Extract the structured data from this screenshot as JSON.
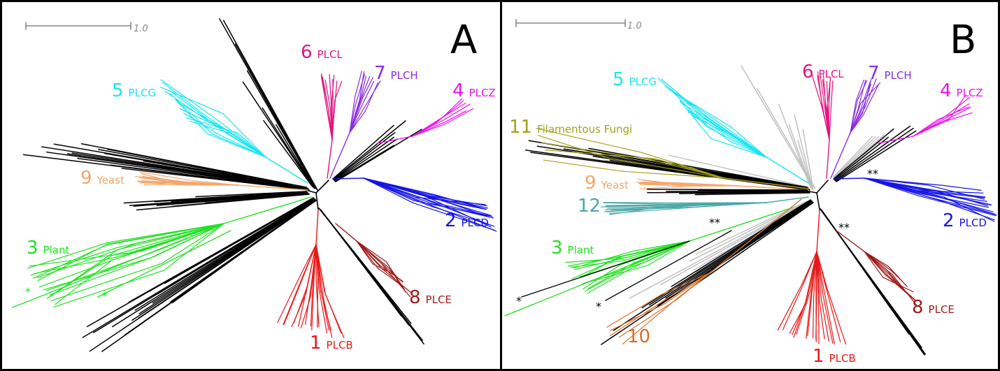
{
  "panels": [
    {
      "letter": "A",
      "scale_label": "1.0",
      "clusters": [
        {
          "num": "6",
          "name": "PLCL",
          "color": "#e0157f"
        },
        {
          "num": "7",
          "name": "PLCH",
          "color": "#8b2be2"
        },
        {
          "num": "4",
          "name": "PLCZ",
          "color": "#ee10ee"
        },
        {
          "num": "5",
          "name": "PLCG",
          "color": "#17e6f2"
        },
        {
          "num": "9",
          "name": "Yeast",
          "color": "#f5a66a"
        },
        {
          "num": "2",
          "name": "PLCD",
          "color": "#1414e6"
        },
        {
          "num": "3",
          "name": "Plant",
          "color": "#22e022"
        },
        {
          "num": "8",
          "name": "PLCE",
          "color": "#9e1a1a"
        },
        {
          "num": "1",
          "name": "PLCB",
          "color": "#e81818"
        }
      ],
      "markers": [
        "*",
        "*"
      ]
    },
    {
      "letter": "B",
      "scale_label": "1.0",
      "clusters": [
        {
          "num": "6",
          "name": "PLCL",
          "color": "#e0157f"
        },
        {
          "num": "7",
          "name": "PLCH",
          "color": "#8b2be2"
        },
        {
          "num": "4",
          "name": "PLCZ",
          "color": "#ee10ee"
        },
        {
          "num": "5",
          "name": "PLCG",
          "color": "#17e6f2"
        },
        {
          "num": "11",
          "name": "Filamentous Fungi",
          "color": "#a3a21a"
        },
        {
          "num": "9",
          "name": "Yeast",
          "color": "#f5a66a"
        },
        {
          "num": "12",
          "name": "",
          "color": "#4aa8a8"
        },
        {
          "num": "2",
          "name": "PLCD",
          "color": "#1414e6"
        },
        {
          "num": "3",
          "name": "Plant",
          "color": "#22e022"
        },
        {
          "num": "8",
          "name": "PLCE",
          "color": "#9e1a1a"
        },
        {
          "num": "10",
          "name": "",
          "color": "#d8702a"
        },
        {
          "num": "1",
          "name": "PLCB",
          "color": "#e81818"
        }
      ],
      "markers": [
        "**",
        "**",
        "**",
        "*",
        "*"
      ]
    }
  ]
}
